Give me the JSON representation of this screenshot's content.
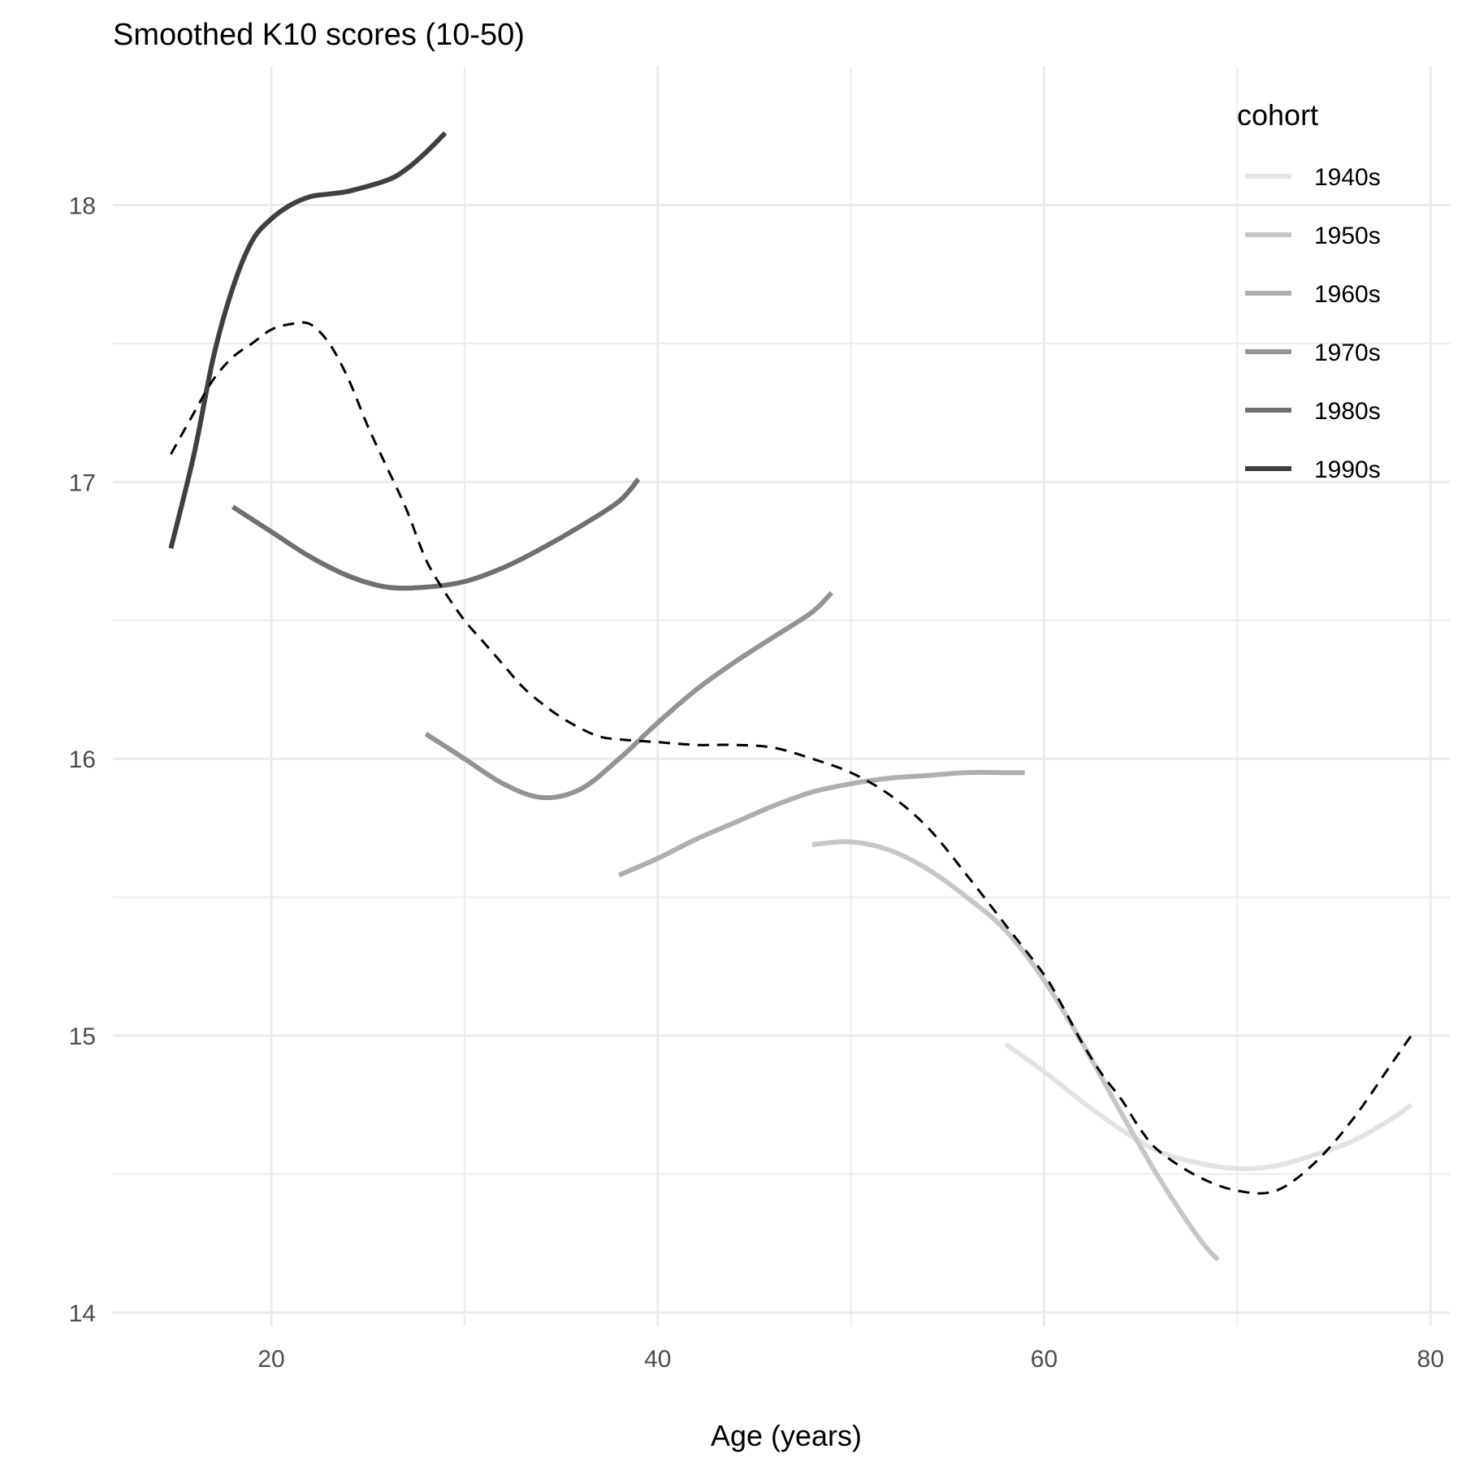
{
  "chart_data": {
    "type": "line",
    "title": "Smoothed K10 scores (10-50)",
    "xlabel": "Age (years)",
    "ylabel": "",
    "xlim": [
      11.8,
      81
    ],
    "ylim": [
      13.95,
      18.5
    ],
    "x_ticks": [
      20,
      40,
      60,
      80
    ],
    "y_ticks": [
      14,
      15,
      16,
      17,
      18
    ],
    "grid": true,
    "legend": {
      "title": "cohort",
      "position": "right"
    },
    "series": [
      {
        "name": "1940s",
        "color": "#e2e2e2",
        "points": [
          [
            58,
            14.97
          ],
          [
            60,
            14.87
          ],
          [
            62,
            14.76
          ],
          [
            64,
            14.66
          ],
          [
            66,
            14.58
          ],
          [
            68,
            14.54
          ],
          [
            70,
            14.52
          ],
          [
            72,
            14.53
          ],
          [
            74,
            14.57
          ],
          [
            76,
            14.62
          ],
          [
            78,
            14.7
          ],
          [
            79,
            14.75
          ]
        ]
      },
      {
        "name": "1950s",
        "color": "#c6c6c6",
        "points": [
          [
            48,
            15.69
          ],
          [
            50,
            15.7
          ],
          [
            52,
            15.67
          ],
          [
            54,
            15.6
          ],
          [
            56,
            15.5
          ],
          [
            58,
            15.38
          ],
          [
            60,
            15.2
          ],
          [
            62,
            14.97
          ],
          [
            64,
            14.72
          ],
          [
            66,
            14.48
          ],
          [
            68,
            14.27
          ],
          [
            69,
            14.19
          ]
        ]
      },
      {
        "name": "1960s",
        "color": "#aeaeae",
        "points": [
          [
            38,
            15.58
          ],
          [
            40,
            15.64
          ],
          [
            42,
            15.71
          ],
          [
            44,
            15.77
          ],
          [
            46,
            15.83
          ],
          [
            48,
            15.88
          ],
          [
            50,
            15.91
          ],
          [
            52,
            15.93
          ],
          [
            54,
            15.94
          ],
          [
            56,
            15.95
          ],
          [
            58,
            15.95
          ],
          [
            59,
            15.95
          ]
        ]
      },
      {
        "name": "1970s",
        "color": "#939393",
        "points": [
          [
            28,
            16.09
          ],
          [
            30,
            16.0
          ],
          [
            32,
            15.91
          ],
          [
            34,
            15.86
          ],
          [
            36,
            15.89
          ],
          [
            38,
            16.0
          ],
          [
            40,
            16.13
          ],
          [
            42,
            16.25
          ],
          [
            44,
            16.35
          ],
          [
            46,
            16.44
          ],
          [
            48,
            16.53
          ],
          [
            49,
            16.6
          ]
        ]
      },
      {
        "name": "1980s",
        "color": "#6f6f6f",
        "points": [
          [
            18,
            16.91
          ],
          [
            20,
            16.82
          ],
          [
            22,
            16.73
          ],
          [
            24,
            16.66
          ],
          [
            26,
            16.62
          ],
          [
            28,
            16.62
          ],
          [
            30,
            16.64
          ],
          [
            32,
            16.69
          ],
          [
            34,
            16.76
          ],
          [
            36,
            16.84
          ],
          [
            38,
            16.93
          ],
          [
            39,
            17.01
          ]
        ]
      },
      {
        "name": "1990s",
        "color": "#3f3f3f",
        "points": [
          [
            14.8,
            16.76
          ],
          [
            16,
            17.1
          ],
          [
            17,
            17.45
          ],
          [
            18,
            17.7
          ],
          [
            19,
            17.87
          ],
          [
            20,
            17.95
          ],
          [
            21,
            18.0
          ],
          [
            22,
            18.03
          ],
          [
            23,
            18.04
          ],
          [
            24,
            18.05
          ],
          [
            26,
            18.09
          ],
          [
            27,
            18.13
          ],
          [
            28,
            18.19
          ],
          [
            29,
            18.26
          ]
        ]
      },
      {
        "name": "",
        "color": "#000000",
        "dashed": true,
        "points": [
          [
            14.8,
            17.1
          ],
          [
            16,
            17.25
          ],
          [
            17,
            17.37
          ],
          [
            18,
            17.45
          ],
          [
            19,
            17.5
          ],
          [
            20,
            17.55
          ],
          [
            21,
            17.57
          ],
          [
            22,
            17.57
          ],
          [
            23,
            17.5
          ],
          [
            24,
            17.37
          ],
          [
            25,
            17.2
          ],
          [
            26,
            17.05
          ],
          [
            27,
            16.9
          ],
          [
            28,
            16.72
          ],
          [
            29,
            16.6
          ],
          [
            30,
            16.5
          ],
          [
            31,
            16.42
          ],
          [
            32,
            16.34
          ],
          [
            33,
            16.26
          ],
          [
            34,
            16.2
          ],
          [
            35,
            16.15
          ],
          [
            36,
            16.11
          ],
          [
            37,
            16.08
          ],
          [
            38,
            16.07
          ],
          [
            40,
            16.06
          ],
          [
            42,
            16.05
          ],
          [
            44,
            16.05
          ],
          [
            46,
            16.04
          ],
          [
            48,
            16.0
          ],
          [
            50,
            15.95
          ],
          [
            52,
            15.87
          ],
          [
            54,
            15.75
          ],
          [
            56,
            15.58
          ],
          [
            58,
            15.4
          ],
          [
            60,
            15.22
          ],
          [
            61,
            15.1
          ],
          [
            62,
            14.97
          ],
          [
            63,
            14.86
          ],
          [
            64,
            14.77
          ],
          [
            65,
            14.66
          ],
          [
            66,
            14.58
          ],
          [
            68,
            14.49
          ],
          [
            70,
            14.44
          ],
          [
            72,
            14.44
          ],
          [
            74,
            14.54
          ],
          [
            76,
            14.7
          ],
          [
            78,
            14.9
          ],
          [
            79,
            15.0
          ]
        ]
      }
    ]
  }
}
